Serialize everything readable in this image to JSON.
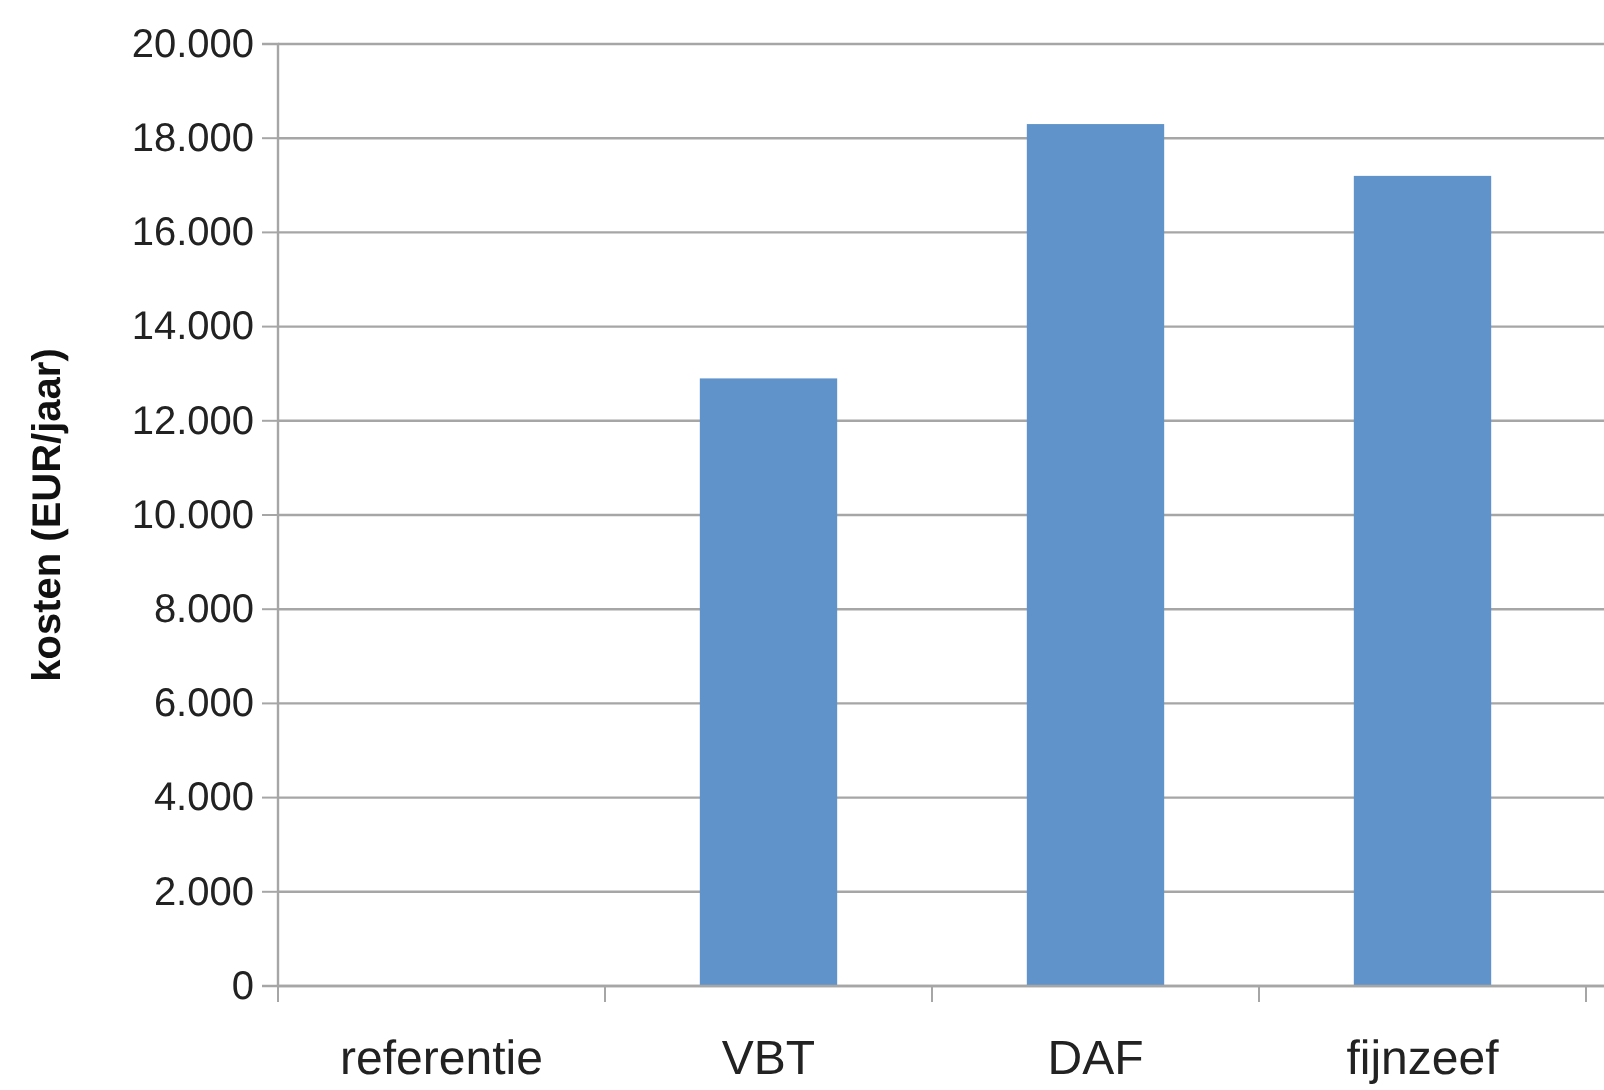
{
  "chart_data": {
    "type": "bar",
    "ylabel": "kosten (EUR/jaar)",
    "categories": [
      "referentie",
      "VBT",
      "DAF",
      "fijnzeef"
    ],
    "values": [
      0,
      12900,
      18300,
      17200
    ],
    "color": "#5f93c9",
    "ylim": [
      0,
      20000
    ],
    "yticks": [
      {
        "value": 0,
        "label": "0"
      },
      {
        "value": 2000,
        "label": "2.000"
      },
      {
        "value": 4000,
        "label": "4.000"
      },
      {
        "value": 6000,
        "label": "6.000"
      },
      {
        "value": 8000,
        "label": "8.000"
      },
      {
        "value": 10000,
        "label": "10.000"
      },
      {
        "value": 12000,
        "label": "12.000"
      },
      {
        "value": 14000,
        "label": "14.000"
      },
      {
        "value": 16000,
        "label": "16.000"
      },
      {
        "value": 18000,
        "label": "18.000"
      },
      {
        "value": 20000,
        "label": "20.000"
      }
    ],
    "grid": "y"
  }
}
